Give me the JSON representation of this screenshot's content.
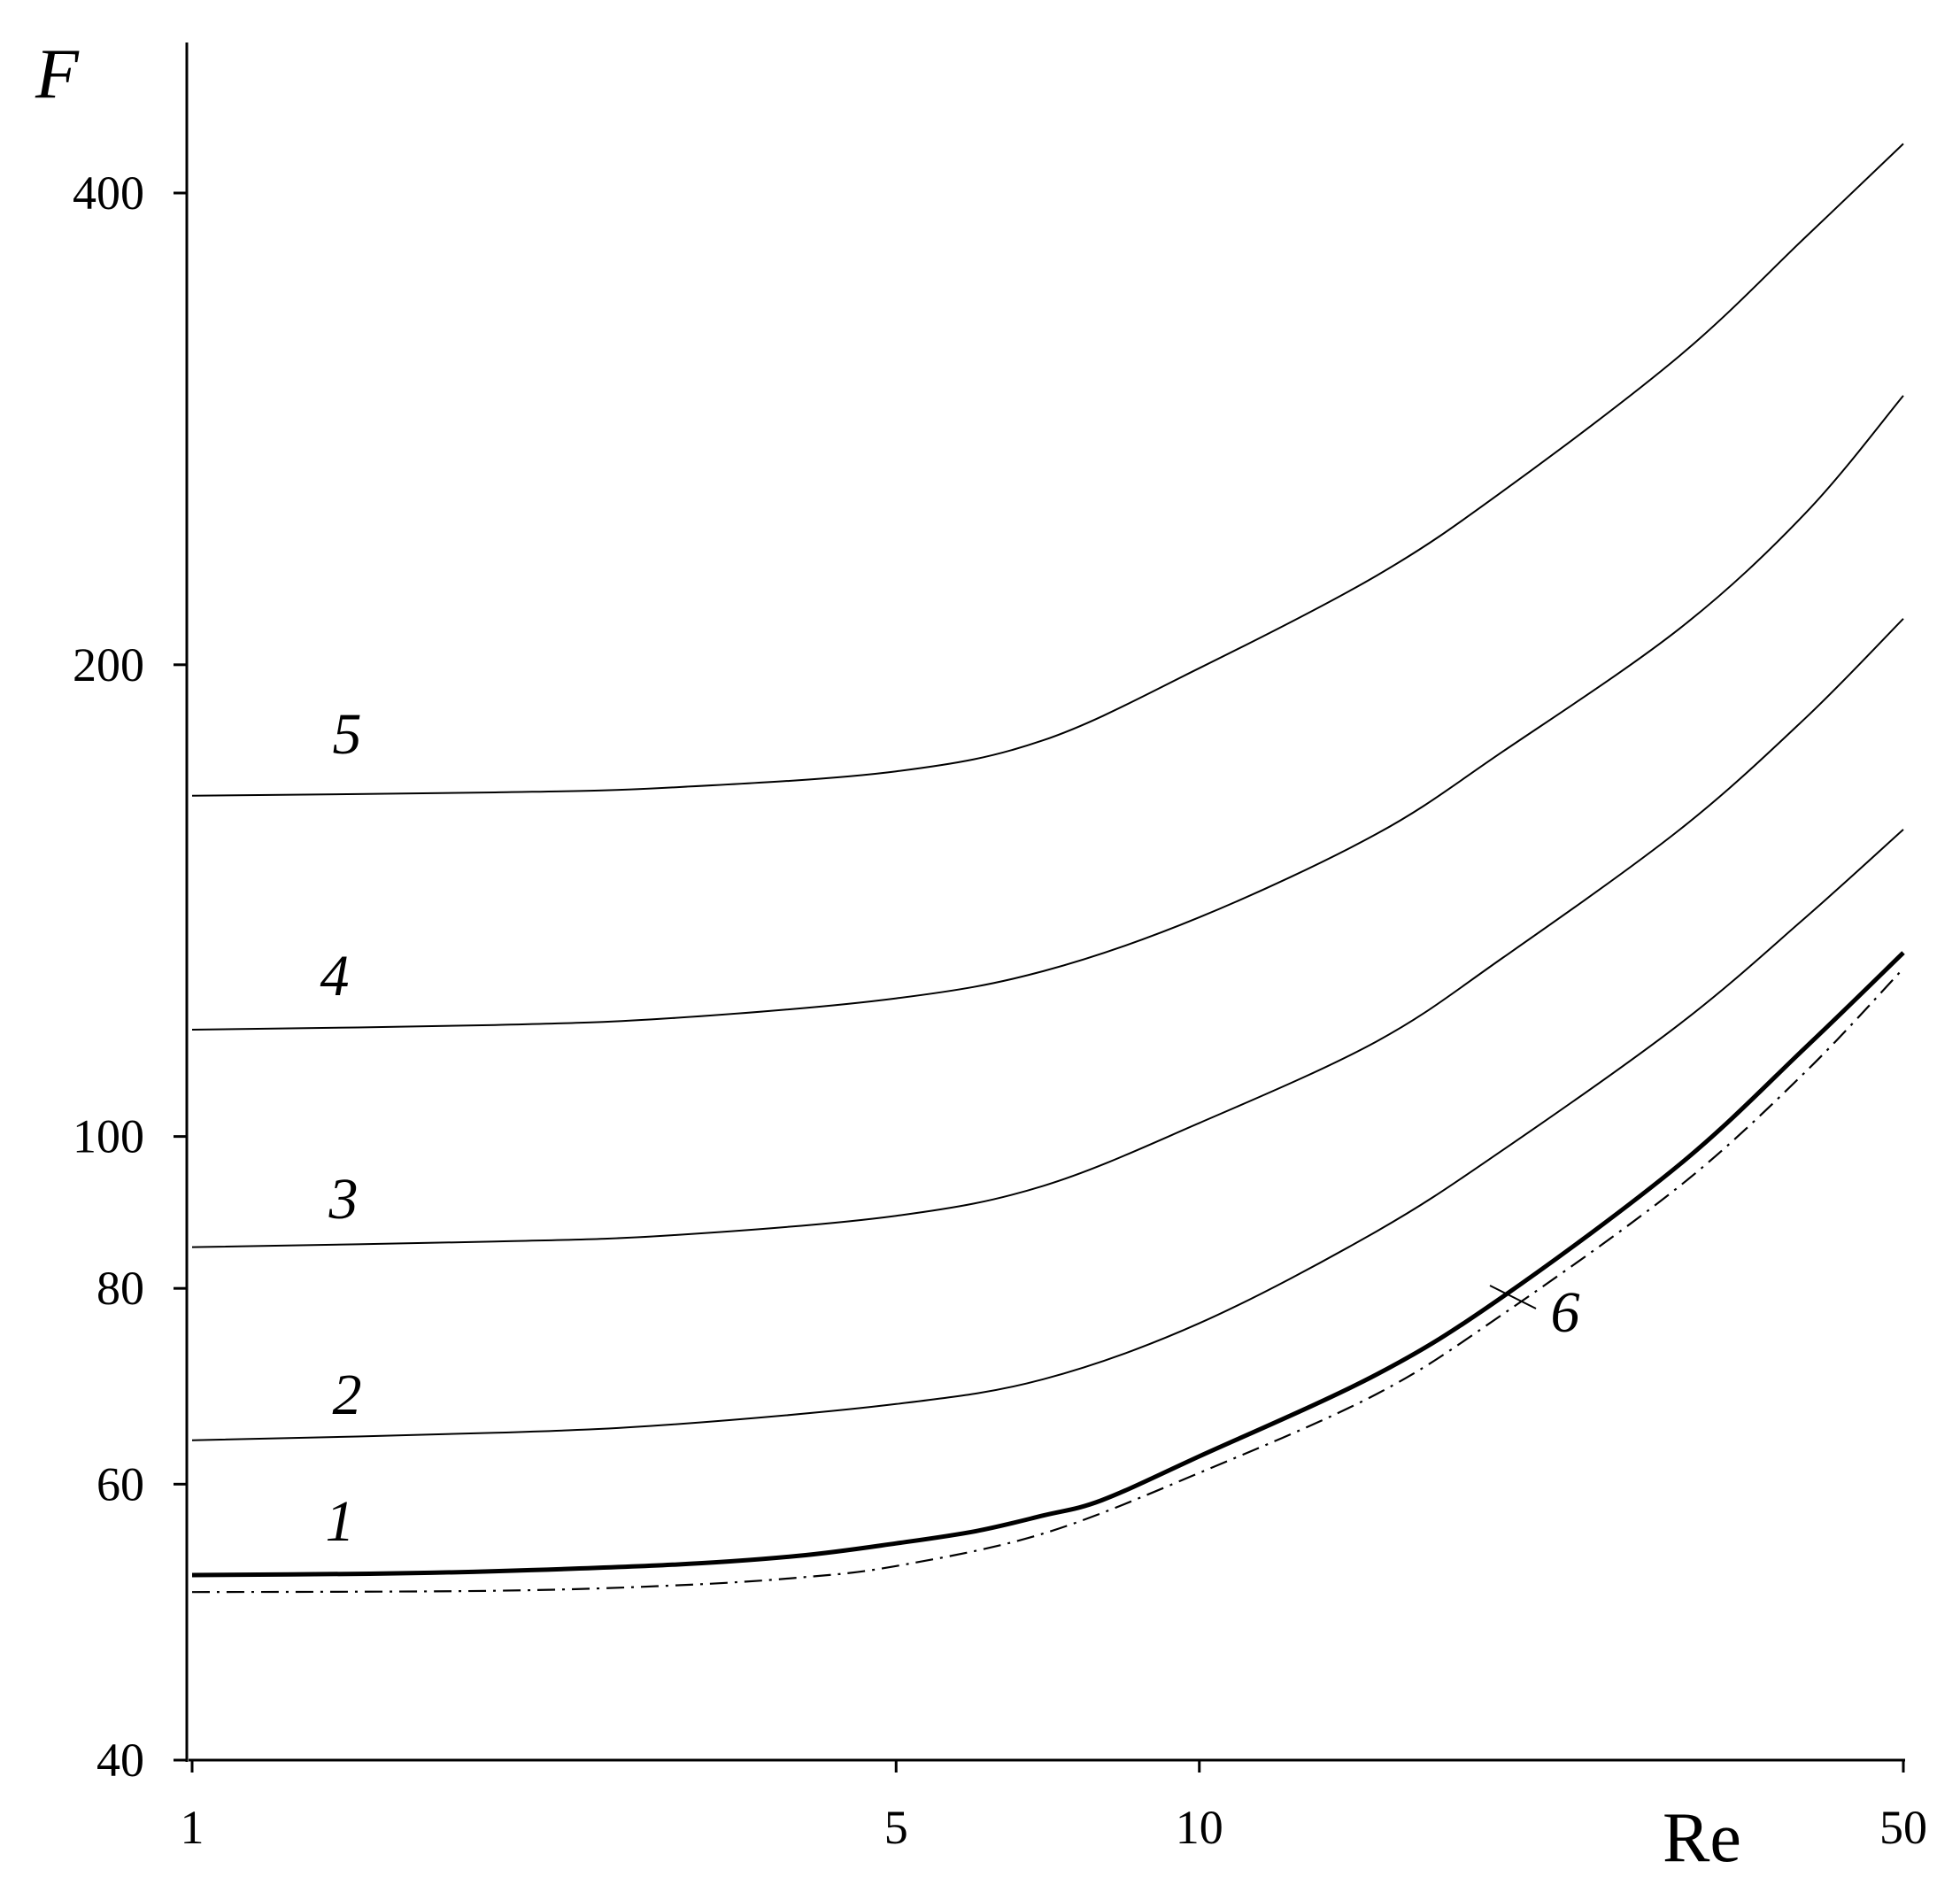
{
  "chart_data": {
    "type": "line",
    "xlabel": "Re",
    "ylabel": "F",
    "xscale": "log",
    "yscale": "log",
    "xlim": [
      1,
      50
    ],
    "ylim": [
      40,
      480
    ],
    "xticks": [
      1,
      5,
      10,
      50
    ],
    "yticks": [
      40,
      60,
      80,
      100,
      200,
      400
    ],
    "grid": false,
    "legend": "none",
    "series": [
      {
        "label": "1",
        "style": "thick",
        "points": [
          [
            1,
            52.5
          ],
          [
            1.5,
            52.6
          ],
          [
            2,
            52.8
          ],
          [
            3,
            53.3
          ],
          [
            4,
            54.0
          ],
          [
            5,
            55.0
          ],
          [
            6,
            56.0
          ],
          [
            7,
            57.3
          ],
          [
            8,
            58.6
          ],
          [
            10,
            62.5
          ],
          [
            15,
            70.5
          ],
          [
            20,
            79.0
          ],
          [
            30,
            96.0
          ],
          [
            40,
            114.0
          ],
          [
            50,
            131.0
          ]
        ]
      },
      {
        "label": "2",
        "style": "thin",
        "points": [
          [
            1,
            64.0
          ],
          [
            2,
            64.7
          ],
          [
            3,
            65.5
          ],
          [
            5,
            67.5
          ],
          [
            7,
            70.0
          ],
          [
            10,
            76.0
          ],
          [
            15,
            87.0
          ],
          [
            20,
            98.0
          ],
          [
            30,
            118.0
          ],
          [
            40,
            138.0
          ],
          [
            50,
            157.0
          ]
        ]
      },
      {
        "label": "3",
        "style": "thin",
        "points": [
          [
            1,
            85.0
          ],
          [
            2,
            85.7
          ],
          [
            3,
            86.5
          ],
          [
            5,
            89.0
          ],
          [
            7,
            93.0
          ],
          [
            10,
            102.0
          ],
          [
            15,
            115.0
          ],
          [
            20,
            130.0
          ],
          [
            30,
            157.0
          ],
          [
            40,
            185.0
          ],
          [
            50,
            214.0
          ]
        ]
      },
      {
        "label": "4",
        "style": "thin",
        "points": [
          [
            1,
            117.0
          ],
          [
            2,
            117.8
          ],
          [
            3,
            119.0
          ],
          [
            5,
            122.5
          ],
          [
            7,
            127.5
          ],
          [
            10,
            138.0
          ],
          [
            15,
            156.0
          ],
          [
            20,
            176.0
          ],
          [
            30,
            211.0
          ],
          [
            40,
            250.0
          ],
          [
            50,
            297.0
          ]
        ]
      },
      {
        "label": "5",
        "style": "thin",
        "points": [
          [
            1,
            165.0
          ],
          [
            2,
            165.8
          ],
          [
            3,
            167.0
          ],
          [
            5,
            171.0
          ],
          [
            7,
            179.0
          ],
          [
            10,
            199.0
          ],
          [
            15,
            228.0
          ],
          [
            20,
            258.0
          ],
          [
            30,
            315.0
          ],
          [
            40,
            375.0
          ],
          [
            50,
            430.0
          ]
        ]
      },
      {
        "label": "6",
        "style": "dash-dot",
        "points": [
          [
            1,
            51.2
          ],
          [
            2,
            51.3
          ],
          [
            3,
            51.7
          ],
          [
            4,
            52.3
          ],
          [
            5,
            53.2
          ],
          [
            7,
            55.8
          ],
          [
            10,
            61.0
          ],
          [
            15,
            68.5
          ],
          [
            20,
            77.0
          ],
          [
            30,
            93.0
          ],
          [
            40,
            110.0
          ],
          [
            50,
            128.0
          ]
        ]
      }
    ]
  }
}
